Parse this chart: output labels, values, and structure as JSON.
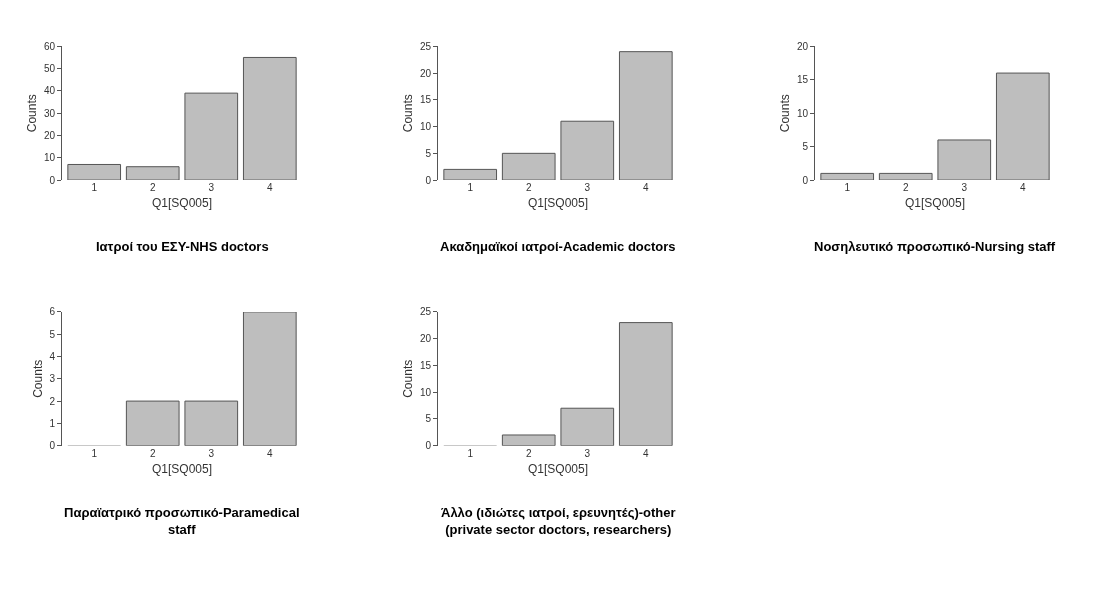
{
  "chart_data": [
    {
      "type": "bar",
      "title": "Ιατροί του ΕΣΥ-NHS doctors",
      "xlabel": "Q1[SQ005]",
      "ylabel": "Counts",
      "categories": [
        "1",
        "2",
        "3",
        "4"
      ],
      "values": [
        7,
        6,
        39,
        55
      ],
      "color": "#bebebe",
      "ylim": [
        0,
        60
      ],
      "yticks": [
        0,
        10,
        20,
        30,
        40,
        50,
        60
      ]
    },
    {
      "type": "bar",
      "title": "Ακαδημαϊκοί ιατροί-Academic doctors",
      "xlabel": "Q1[SQ005]",
      "ylabel": "Counts",
      "categories": [
        "1",
        "2",
        "3",
        "4"
      ],
      "values": [
        2,
        5,
        11,
        24
      ],
      "color": "#bebebe",
      "ylim": [
        0,
        25
      ],
      "yticks": [
        0,
        5,
        10,
        15,
        20,
        25
      ]
    },
    {
      "type": "bar",
      "title": "Νοσηλευτικό προσωπικό-Nursing staff",
      "xlabel": "Q1[SQ005]",
      "ylabel": "Counts",
      "categories": [
        "1",
        "2",
        "3",
        "4"
      ],
      "values": [
        1,
        1,
        6,
        16
      ],
      "color": "#bebebe",
      "ylim": [
        0,
        20
      ],
      "yticks": [
        0,
        5,
        10,
        15,
        20
      ]
    },
    {
      "type": "bar",
      "title": "Παραϊατρικό προσωπικό-Paramedical staff",
      "xlabel": "Q1[SQ005]",
      "ylabel": "Counts",
      "categories": [
        "1",
        "2",
        "3",
        "4"
      ],
      "values": [
        0,
        2,
        2,
        6
      ],
      "color": "#bebebe",
      "ylim": [
        0,
        6
      ],
      "yticks": [
        0,
        1,
        2,
        3,
        4,
        5,
        6
      ]
    },
    {
      "type": "bar",
      "title": "Άλλο (ιδιώτες ιατροί, ερευνητές)-other (private sector doctors, researchers)",
      "xlabel": "Q1[SQ005]",
      "ylabel": "Counts",
      "categories": [
        "1",
        "2",
        "3",
        "4"
      ],
      "values": [
        0,
        2,
        7,
        23
      ],
      "color": "#bebebe",
      "ylim": [
        0,
        25
      ],
      "yticks": [
        0,
        5,
        10,
        15,
        20,
        25
      ]
    }
  ]
}
